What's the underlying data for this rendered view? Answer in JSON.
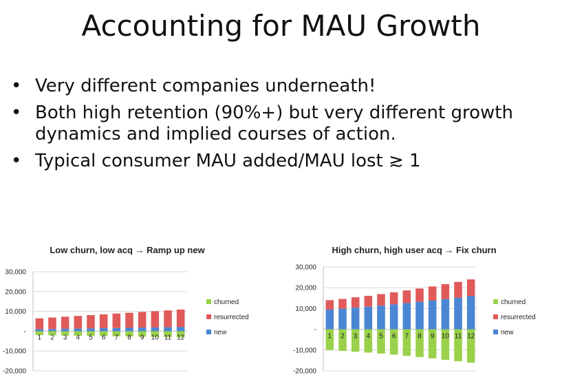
{
  "slide": {
    "title": "Accounting for MAU Growth",
    "bullet_glyph": "•",
    "bullets": [
      "Very different companies underneath!",
      "Both high retention (90%+) but very different growth dynamics and implied courses of action.",
      "Typical consumer MAU added/MAU lost ≳ 1"
    ]
  },
  "colors": {
    "churned": "#9ad14b",
    "resurrected": "#e05a5a",
    "new": "#4a86d4",
    "grid": "#d9d9d9"
  },
  "chart_data": [
    {
      "type": "bar",
      "title": "Low churn, low acq → Ramp up new",
      "categories": [
        "1",
        "2",
        "3",
        "4",
        "5",
        "6",
        "7",
        "8",
        "9",
        "10",
        "11",
        "12"
      ],
      "ylim": [
        -20000,
        30000
      ],
      "y_ticks": [
        -20000,
        -10000,
        0,
        10000,
        20000,
        30000
      ],
      "y_tick_labels": [
        "-20,000",
        "-10,000",
        "-",
        "10,000",
        "20,000",
        "30,000"
      ],
      "grid": true,
      "legend_position": "right",
      "series": [
        {
          "name": "churned",
          "values": [
            -2000,
            -2100,
            -2200,
            -2300,
            -2400,
            -2500,
            -2600,
            -2700,
            -2800,
            -2900,
            -3000,
            -3100
          ]
        },
        {
          "name": "resurrected",
          "values": [
            5500,
            5800,
            6100,
            6400,
            6700,
            7000,
            7300,
            7600,
            7900,
            8200,
            8500,
            8800
          ]
        },
        {
          "name": "new",
          "values": [
            1000,
            1100,
            1200,
            1300,
            1400,
            1500,
            1600,
            1700,
            1800,
            1900,
            2000,
            2100
          ]
        }
      ]
    },
    {
      "type": "bar",
      "title": "High churn, high user acq → Fix churn",
      "categories": [
        "1",
        "2",
        "3",
        "4",
        "5",
        "6",
        "7",
        "8",
        "9",
        "10",
        "11",
        "12"
      ],
      "ylim": [
        -20000,
        30000
      ],
      "y_ticks": [
        -20000,
        -10000,
        0,
        10000,
        20000,
        30000
      ],
      "y_tick_labels": [
        "-20,000",
        "-10,000",
        "-",
        "10,000",
        "20,000",
        "30,000"
      ],
      "grid": true,
      "legend_position": "right",
      "series": [
        {
          "name": "churned",
          "values": [
            -10000,
            -10400,
            -10800,
            -11200,
            -11700,
            -12200,
            -12800,
            -13400,
            -14000,
            -14700,
            -15400,
            -16100
          ]
        },
        {
          "name": "resurrected",
          "values": [
            4500,
            4700,
            5000,
            5200,
            5500,
            5800,
            6100,
            6400,
            6800,
            7200,
            7600,
            8000
          ]
        },
        {
          "name": "new",
          "values": [
            9500,
            9900,
            10400,
            10900,
            11400,
            12000,
            12600,
            13200,
            13800,
            14500,
            15200,
            16000
          ]
        }
      ]
    }
  ]
}
